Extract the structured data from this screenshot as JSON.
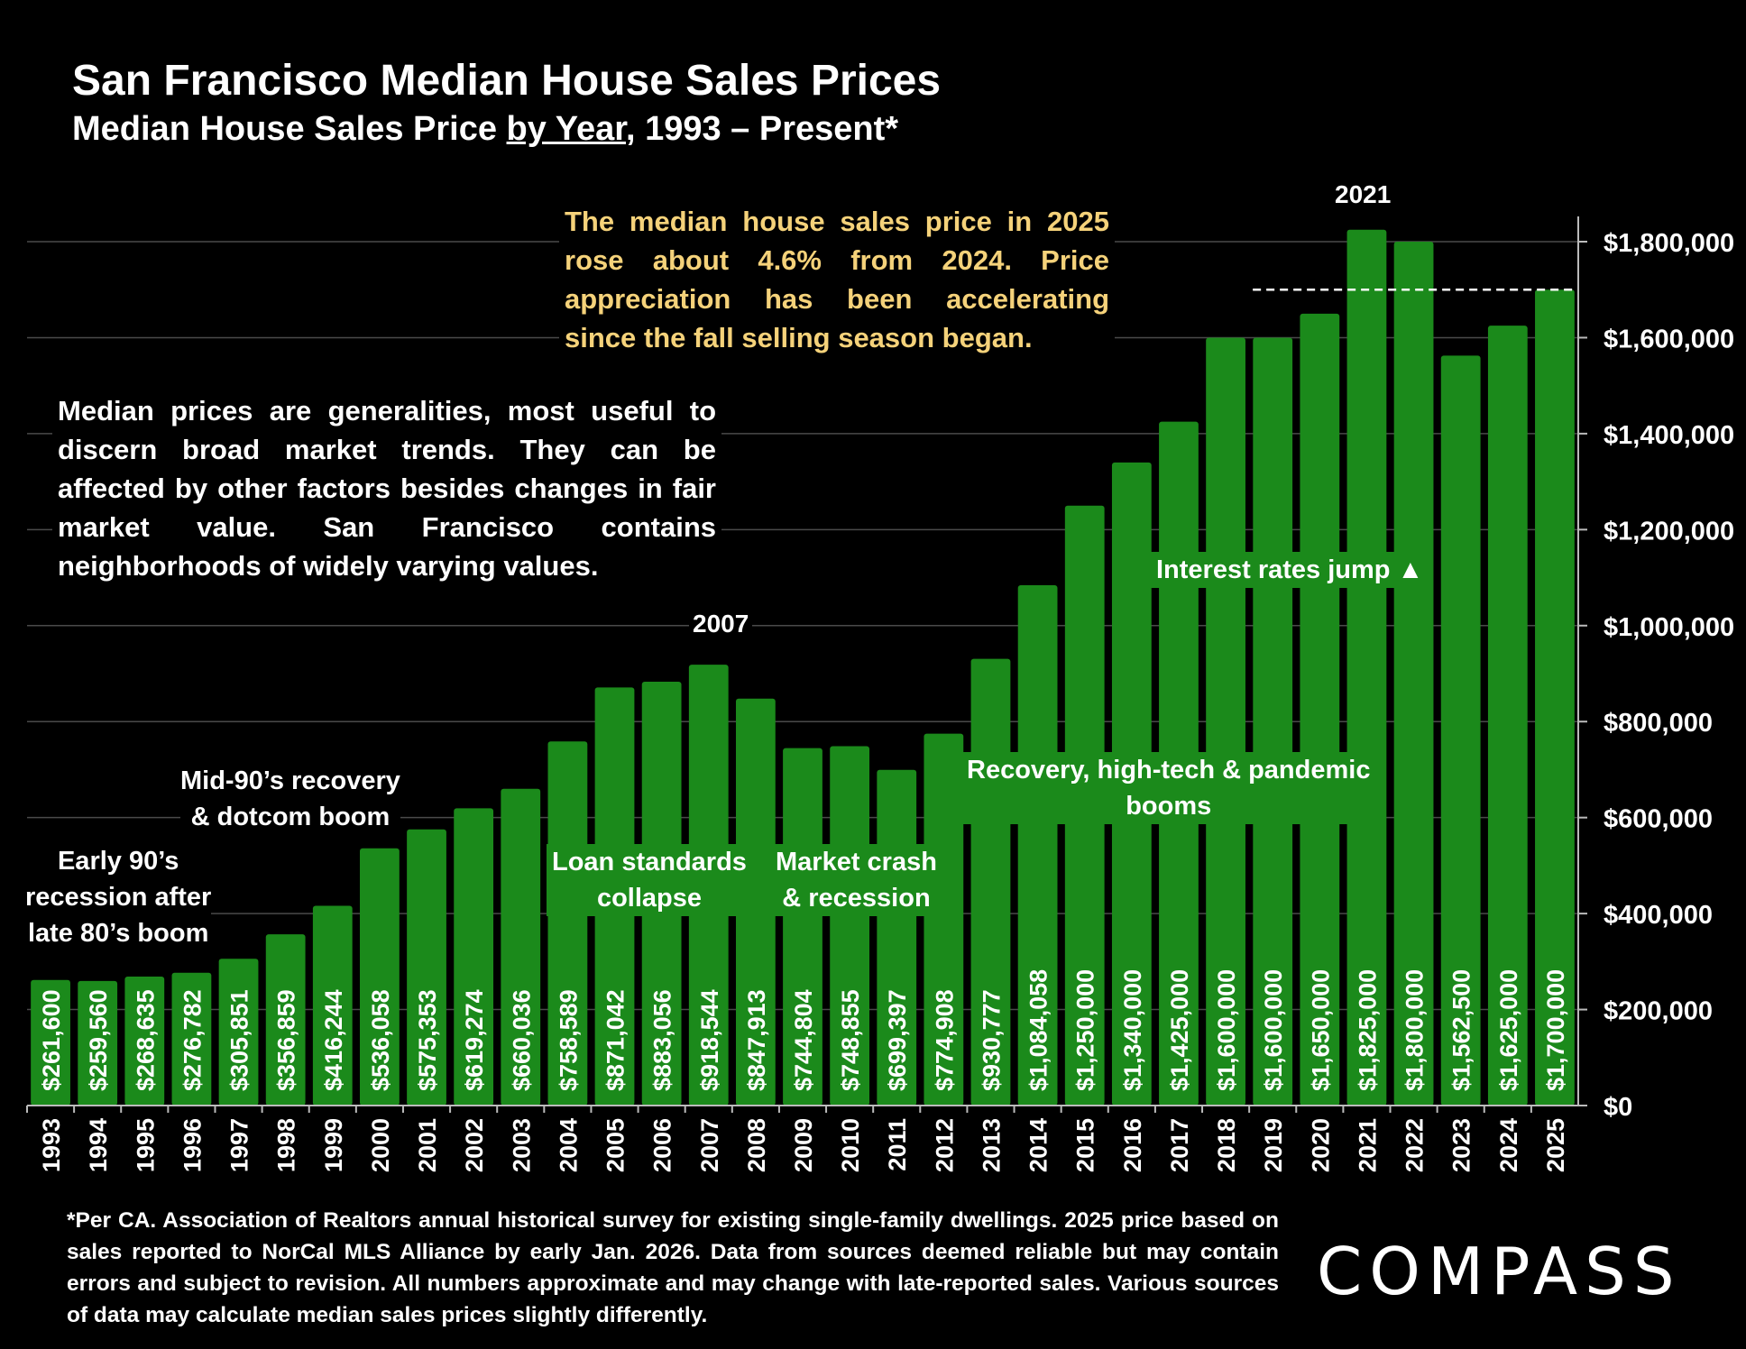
{
  "header": {
    "title": "San Francisco Median House Sales Prices",
    "subtitle_part1": "Median House Sales Price ",
    "subtitle_underlined": "by Year",
    "subtitle_part2": ", 1993 – Present*"
  },
  "notes": {
    "yellow": "The median house sales price in 2025 rose about 4.6% from 2024. Price appreciation has been accelerating since the fall selling season began.",
    "white": "Median prices are generalities, most useful to discern broad market trends. They can be affected by other factors besides changes in fair market value. San Francisco contains neighborhoods of widely varying values."
  },
  "annotations": {
    "early90s": [
      "Early 90’s",
      "recession after",
      "late 80’s boom"
    ],
    "mid90s": [
      "Mid-90’s recovery",
      "& dotcom boom"
    ],
    "loan": [
      "Loan standards",
      "collapse"
    ],
    "crash": [
      "Market crash",
      "& recession"
    ],
    "recovery": [
      "Recovery, high-tech & pandemic",
      "booms"
    ],
    "rates": "Interest rates jump ▲",
    "peak_2007": "2007",
    "peak_2021": "2021"
  },
  "footnote": "*Per CA. Association of Realtors annual historical survey for existing single-family dwellings. 2025 price based on sales reported to NorCal MLS Alliance by early Jan. 2026. Data from sources deemed reliable but may contain errors and subject to revision. All numbers approximate and may change with late-reported sales. Various sources of data may calculate median sales prices slightly differently.",
  "logo": "COMPASS",
  "colors": {
    "bar": "#1b8a1b",
    "background": "#000000",
    "note_yellow": "#f5d27a",
    "gridline": "#4a4a4a"
  },
  "chart_data": {
    "type": "bar",
    "categories": [
      "1993",
      "1994",
      "1995",
      "1996",
      "1997",
      "1998",
      "1999",
      "2000",
      "2001",
      "2002",
      "2003",
      "2004",
      "2005",
      "2006",
      "2007",
      "2008",
      "2009",
      "2010",
      "2011",
      "2012",
      "2013",
      "2014",
      "2015",
      "2016",
      "2017",
      "2018",
      "2019",
      "2020",
      "2021",
      "2022",
      "2023",
      "2024",
      "2025"
    ],
    "values": [
      261600,
      259560,
      268635,
      276782,
      305851,
      356859,
      416244,
      536058,
      575353,
      619274,
      660036,
      758589,
      871042,
      883056,
      918544,
      847913,
      744804,
      748855,
      699397,
      774908,
      930777,
      1084058,
      1250000,
      1340000,
      1425000,
      1600000,
      1600000,
      1650000,
      1825000,
      1800000,
      1562500,
      1625000,
      1700000
    ],
    "labels": [
      "$261,600",
      "$259,560",
      "$268,635",
      "$276,782",
      "$305,851",
      "$356,859",
      "$416,244",
      "$536,058",
      "$575,353",
      "$619,274",
      "$660,036",
      "$758,589",
      "$871,042",
      "$883,056",
      "$918,544",
      "$847,913",
      "$744,804",
      "$748,855",
      "$699,397",
      "$774,908",
      "$930,777",
      "$1,084,058",
      "$1,250,000",
      "$1,340,000",
      "$1,425,000",
      "$1,600,000",
      "$1,600,000",
      "$1,650,000",
      "$1,825,000",
      "$1,800,000",
      "$1,562,500",
      "$1,625,000",
      "$1,700,000"
    ],
    "ylim": [
      0,
      1800000
    ],
    "yticks": [
      0,
      200000,
      400000,
      600000,
      800000,
      1000000,
      1200000,
      1400000,
      1600000,
      1800000
    ],
    "ytick_labels": [
      "$0",
      "$200,000",
      "$400,000",
      "$600,000",
      "$800,000",
      "$1,000,000",
      "$1,200,000",
      "$1,400,000",
      "$1,600,000",
      "$1,800,000"
    ],
    "reference_line_value": 1700000,
    "y_axis_position": "right",
    "grid": true
  }
}
